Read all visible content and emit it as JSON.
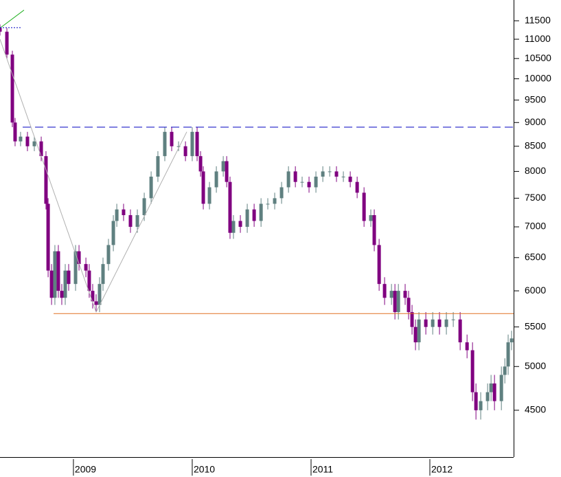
{
  "chart_data": {
    "type": "candlestick",
    "log_scale": true,
    "up_color": "#5f8080",
    "down_color": "#800080",
    "xlim": [
      2008.382,
      2012.705
    ],
    "xticks": [
      2009,
      2010,
      2011,
      2012
    ],
    "ylim": [
      4020,
      12090
    ],
    "yticks": [
      4500,
      5000,
      5500,
      6000,
      6500,
      7000,
      7500,
      8000,
      8500,
      9000,
      9500,
      10000,
      10500,
      11000,
      11500
    ],
    "x": [
      2008.382,
      2008.44,
      2008.486,
      2008.509,
      2008.555,
      2008.613,
      2008.671,
      2008.729,
      2008.769,
      2008.787,
      2008.816,
      2008.844,
      2008.873,
      2008.902,
      2008.931,
      2008.96,
      2009.018,
      2009.047,
      2009.105,
      2009.133,
      2009.162,
      2009.191,
      2009.22,
      2009.249,
      2009.295,
      2009.336,
      2009.365,
      2009.422,
      2009.48,
      2009.538,
      2009.596,
      2009.654,
      2009.711,
      2009.769,
      2009.827,
      2009.885,
      2009.943,
      2010.0,
      2010.041,
      2010.07,
      2010.093,
      2010.145,
      2010.203,
      2010.261,
      2010.29,
      2010.318,
      2010.347,
      2010.405,
      2010.463,
      2010.521,
      2010.579,
      2010.636,
      2010.694,
      2010.752,
      2010.81,
      2010.868,
      2010.925,
      2010.983,
      2011.041,
      2011.099,
      2011.157,
      2011.214,
      2011.272,
      2011.33,
      2011.388,
      2011.446,
      2011.503,
      2011.532,
      2011.573,
      2011.619,
      2011.677,
      2011.706,
      2011.735,
      2011.792,
      2011.821,
      2011.85,
      2011.879,
      2011.908,
      2011.966,
      2012.024,
      2012.081,
      2012.139,
      2012.197,
      2012.255,
      2012.313,
      2012.359,
      2012.388,
      2012.428,
      2012.486,
      2012.515,
      2012.544,
      2012.602,
      2012.631,
      2012.659,
      2012.688
    ],
    "ohlc": [
      [
        11300,
        11400,
        11100,
        11200
      ],
      [
        11200,
        11300,
        10500,
        10600
      ],
      [
        10600,
        10700,
        8900,
        9000
      ],
      [
        9000,
        9100,
        8500,
        8600
      ],
      [
        8600,
        8800,
        8500,
        8700
      ],
      [
        8700,
        8800,
        8400,
        8500
      ],
      [
        8500,
        8700,
        8400,
        8600
      ],
      [
        8600,
        8700,
        8200,
        8300
      ],
      [
        8300,
        8400,
        7300,
        7400
      ],
      [
        7400,
        7500,
        6200,
        6300
      ],
      [
        6300,
        6400,
        5800,
        5900
      ],
      [
        5900,
        6700,
        5800,
        6600
      ],
      [
        6600,
        6700,
        5900,
        6000
      ],
      [
        6000,
        6100,
        5800,
        5900
      ],
      [
        5900,
        6400,
        5800,
        6300
      ],
      [
        6300,
        6400,
        6000,
        6100
      ],
      [
        6100,
        6700,
        6000,
        6600
      ],
      [
        6600,
        6700,
        6300,
        6400
      ],
      [
        6400,
        6500,
        6200,
        6300
      ],
      [
        6300,
        6400,
        5900,
        6000
      ],
      [
        6000,
        6100,
        5750,
        5850
      ],
      [
        5850,
        5950,
        5700,
        5800
      ],
      [
        5800,
        6200,
        5700,
        6100
      ],
      [
        6100,
        6500,
        6000,
        6400
      ],
      [
        6400,
        6800,
        6300,
        6700
      ],
      [
        6700,
        7200,
        6600,
        7100
      ],
      [
        7100,
        7400,
        7000,
        7300
      ],
      [
        7300,
        7400,
        7100,
        7200
      ],
      [
        7200,
        7300,
        6900,
        7000
      ],
      [
        7000,
        7300,
        6900,
        7200
      ],
      [
        7200,
        7600,
        7100,
        7500
      ],
      [
        7500,
        8000,
        7400,
        7900
      ],
      [
        7900,
        8400,
        7800,
        8300
      ],
      [
        8300,
        8900,
        8200,
        8800
      ],
      [
        8800,
        8900,
        8400,
        8500
      ],
      [
        8500,
        8600,
        8400,
        8500
      ],
      [
        8500,
        8600,
        8200,
        8300
      ],
      [
        8300,
        8900,
        8200,
        8800
      ],
      [
        8800,
        8900,
        8200,
        8300
      ],
      [
        8300,
        8400,
        7900,
        8000
      ],
      [
        8000,
        8100,
        7300,
        7400
      ],
      [
        7400,
        7800,
        7300,
        7700
      ],
      [
        7700,
        8100,
        7600,
        8000
      ],
      [
        8000,
        8300,
        7900,
        8200
      ],
      [
        8200,
        8300,
        7700,
        7800
      ],
      [
        7800,
        7900,
        6800,
        6900
      ],
      [
        6900,
        7200,
        6800,
        7100
      ],
      [
        7100,
        7200,
        6900,
        7000
      ],
      [
        7000,
        7400,
        6900,
        7300
      ],
      [
        7300,
        7400,
        7000,
        7100
      ],
      [
        7100,
        7500,
        7000,
        7400
      ],
      [
        7400,
        7500,
        7300,
        7400
      ],
      [
        7400,
        7600,
        7300,
        7500
      ],
      [
        7500,
        7800,
        7400,
        7700
      ],
      [
        7700,
        8100,
        7600,
        8000
      ],
      [
        8000,
        8100,
        7700,
        7800
      ],
      [
        7800,
        7900,
        7700,
        7800
      ],
      [
        7800,
        7900,
        7600,
        7700
      ],
      [
        7700,
        8000,
        7600,
        7900
      ],
      [
        7900,
        8100,
        7800,
        8000
      ],
      [
        8000,
        8100,
        7900,
        8000
      ],
      [
        8000,
        8100,
        7800,
        7900
      ],
      [
        7900,
        8000,
        7800,
        7900
      ],
      [
        7900,
        8000,
        7700,
        7800
      ],
      [
        7800,
        7900,
        7500,
        7600
      ],
      [
        7600,
        7700,
        7000,
        7100
      ],
      [
        7100,
        7300,
        7000,
        7200
      ],
      [
        7200,
        7300,
        6600,
        6700
      ],
      [
        6700,
        6800,
        6000,
        6100
      ],
      [
        6100,
        6200,
        5800,
        5900
      ],
      [
        5900,
        6100,
        5800,
        6000
      ],
      [
        6000,
        6100,
        5600,
        5700
      ],
      [
        5700,
        6100,
        5600,
        6000
      ],
      [
        6000,
        6100,
        5800,
        5900
      ],
      [
        5900,
        6000,
        5600,
        5700
      ],
      [
        5700,
        5800,
        5400,
        5500
      ],
      [
        5500,
        5600,
        5200,
        5300
      ],
      [
        5300,
        5700,
        5200,
        5600
      ],
      [
        5600,
        5700,
        5400,
        5500
      ],
      [
        5500,
        5700,
        5400,
        5600
      ],
      [
        5600,
        5700,
        5400,
        5500
      ],
      [
        5500,
        5700,
        5400,
        5600
      ],
      [
        5600,
        5700,
        5500,
        5600
      ],
      [
        5600,
        5700,
        5200,
        5300
      ],
      [
        5300,
        5400,
        5100,
        5200
      ],
      [
        5200,
        5300,
        4600,
        4700
      ],
      [
        4700,
        4800,
        4400,
        4500
      ],
      [
        4500,
        4700,
        4400,
        4600
      ],
      [
        4600,
        4800,
        4500,
        4700
      ],
      [
        4700,
        4900,
        4600,
        4800
      ],
      [
        4800,
        4900,
        4500,
        4600
      ],
      [
        4600,
        5000,
        4500,
        4900
      ],
      [
        4900,
        5100,
        4800,
        5000
      ],
      [
        5000,
        5400,
        4900,
        5300
      ],
      [
        5300,
        5450,
        5200,
        5350
      ]
    ],
    "lines": [
      {
        "color": "#0000c0",
        "dash": "12 6",
        "x": [
          2008.573,
          2012.705
        ],
        "y": [
          8900,
          8900
        ]
      },
      {
        "color": "#e07020",
        "dash": "none",
        "x": [
          2008.833,
          2012.705
        ],
        "y": [
          5680,
          5680
        ]
      },
      {
        "color": "#b0b0b0",
        "dash": "none",
        "x": [
          2008.382,
          2009.191
        ],
        "y": [
          11000,
          5700
        ]
      },
      {
        "color": "#b0b0b0",
        "dash": "none",
        "x": [
          2009.191,
          2009.954
        ],
        "y": [
          5700,
          8800
        ]
      },
      {
        "color": "#20b020",
        "dash": "none",
        "x": [
          2008.382,
          2008.584
        ],
        "y": [
          11300,
          11800
        ]
      },
      {
        "color": "#0000c0",
        "dash": "2 2",
        "x": [
          2008.382,
          2008.567
        ],
        "y": [
          11310,
          11310
        ]
      }
    ]
  }
}
